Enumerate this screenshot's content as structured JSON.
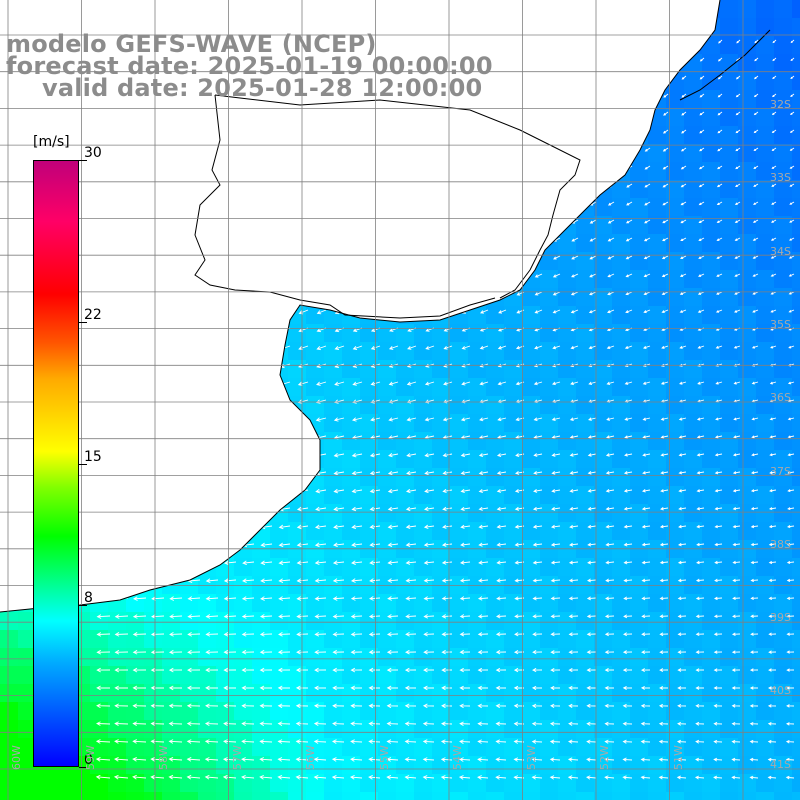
{
  "titles": {
    "model": "modelo GEFS-WAVE (NCEP)",
    "forecast": "forecast date: 2025-01-19 00:00:00",
    "valid": "valid date: 2025-01-28 12:00:00"
  },
  "colorbar": {
    "unit": "[m/s]",
    "ticks": [
      {
        "value": 30,
        "label": "30"
      },
      {
        "value": 22,
        "label": "22"
      },
      {
        "value": 15,
        "label": "15"
      },
      {
        "value": 8,
        "label": "8"
      },
      {
        "value": 0,
        "label": "0"
      }
    ],
    "range": [
      0,
      30
    ]
  },
  "lat_labels": [
    "32S",
    "33S",
    "34S",
    "35S",
    "36S",
    "37S",
    "38S",
    "39S",
    "40S",
    "41S"
  ],
  "lon_labels": [
    "60W",
    "59W",
    "58W",
    "57W",
    "56W",
    "55W",
    "54W",
    "53W",
    "52W",
    "51W"
  ],
  "colors": {
    "land": "#ffffff",
    "grid": "#808080",
    "coast": "#000000",
    "arrow": "#ffffff",
    "title": "#8c8c8c"
  }
}
